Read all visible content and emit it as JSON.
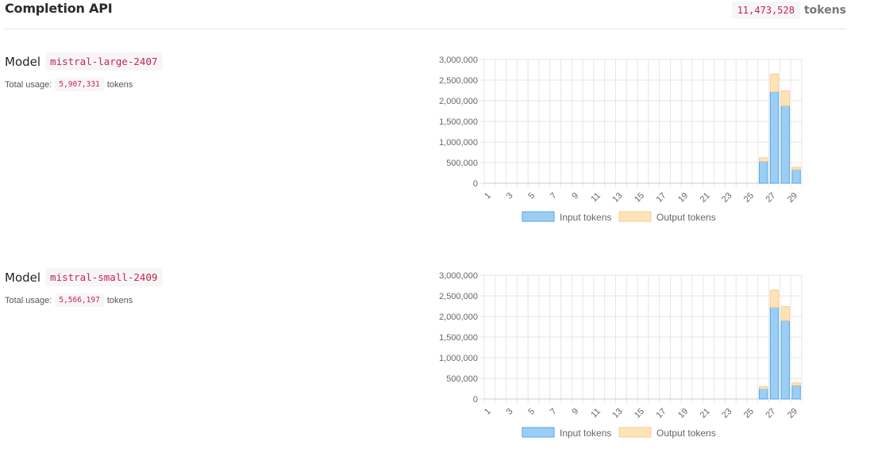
{
  "header": {
    "title": "Completion API",
    "total_tokens": "11,473,528",
    "tokens_unit": "tokens"
  },
  "models": [
    {
      "label": "Model",
      "name": "mistral-large-2407",
      "usage_label": "Total usage:",
      "usage_value": "5,907,331",
      "usage_unit": "tokens"
    },
    {
      "label": "Model",
      "name": "mistral-small-2409",
      "usage_label": "Total usage:",
      "usage_value": "5,566,197",
      "usage_unit": "tokens"
    }
  ],
  "colors": {
    "input_fill": "#9ccef5",
    "input_stroke": "#4fa6e8",
    "output_fill": "#ffe3b8",
    "output_stroke": "#f7cf8d",
    "grid": "#e6e6e6",
    "axis_text": "#666666"
  },
  "chart_data": [
    {
      "type": "bar",
      "stacked": true,
      "categories": [
        1,
        2,
        3,
        4,
        5,
        6,
        7,
        8,
        9,
        10,
        11,
        12,
        13,
        14,
        15,
        16,
        17,
        18,
        19,
        20,
        21,
        22,
        23,
        24,
        25,
        26,
        27,
        28,
        29
      ],
      "tick_labels": [
        "1",
        "3",
        "5",
        "7",
        "9",
        "11",
        "13",
        "15",
        "17",
        "19",
        "21",
        "23",
        "25",
        "27",
        "29"
      ],
      "y_tick_labels": [
        "3,000,000",
        "2,500,000",
        "2,000,000",
        "1,500,000",
        "1,000,000",
        "500,000",
        "0"
      ],
      "ylim": [
        0,
        3000000
      ],
      "grid": true,
      "legend_position": "bottom",
      "series": [
        {
          "name": "Input tokens",
          "values": [
            0,
            0,
            0,
            0,
            0,
            0,
            0,
            0,
            0,
            0,
            0,
            0,
            0,
            0,
            0,
            0,
            0,
            0,
            0,
            0,
            0,
            0,
            0,
            0,
            0,
            530000,
            2220000,
            1880000,
            330000
          ]
        },
        {
          "name": "Output tokens",
          "values": [
            0,
            0,
            0,
            0,
            0,
            0,
            0,
            0,
            0,
            0,
            0,
            0,
            0,
            0,
            0,
            0,
            0,
            0,
            0,
            0,
            0,
            0,
            0,
            0,
            0,
            90000,
            430000,
            360000,
            60000
          ]
        }
      ]
    },
    {
      "type": "bar",
      "stacked": true,
      "categories": [
        1,
        2,
        3,
        4,
        5,
        6,
        7,
        8,
        9,
        10,
        11,
        12,
        13,
        14,
        15,
        16,
        17,
        18,
        19,
        20,
        21,
        22,
        23,
        24,
        25,
        26,
        27,
        28,
        29
      ],
      "tick_labels": [
        "1",
        "3",
        "5",
        "7",
        "9",
        "11",
        "13",
        "15",
        "17",
        "19",
        "21",
        "23",
        "25",
        "27",
        "29"
      ],
      "y_tick_labels": [
        "3,000,000",
        "2,500,000",
        "2,000,000",
        "1,500,000",
        "1,000,000",
        "500,000",
        "0"
      ],
      "ylim": [
        0,
        3000000
      ],
      "grid": true,
      "legend_position": "bottom",
      "series": [
        {
          "name": "Input tokens",
          "values": [
            0,
            0,
            0,
            0,
            0,
            0,
            0,
            0,
            0,
            0,
            0,
            0,
            0,
            0,
            0,
            0,
            0,
            0,
            0,
            0,
            0,
            0,
            0,
            0,
            0,
            250000,
            2220000,
            1900000,
            330000
          ]
        },
        {
          "name": "Output tokens",
          "values": [
            0,
            0,
            0,
            0,
            0,
            0,
            0,
            0,
            0,
            0,
            0,
            0,
            0,
            0,
            0,
            0,
            0,
            0,
            0,
            0,
            0,
            0,
            0,
            0,
            0,
            50000,
            420000,
            340000,
            60000
          ]
        }
      ]
    }
  ]
}
